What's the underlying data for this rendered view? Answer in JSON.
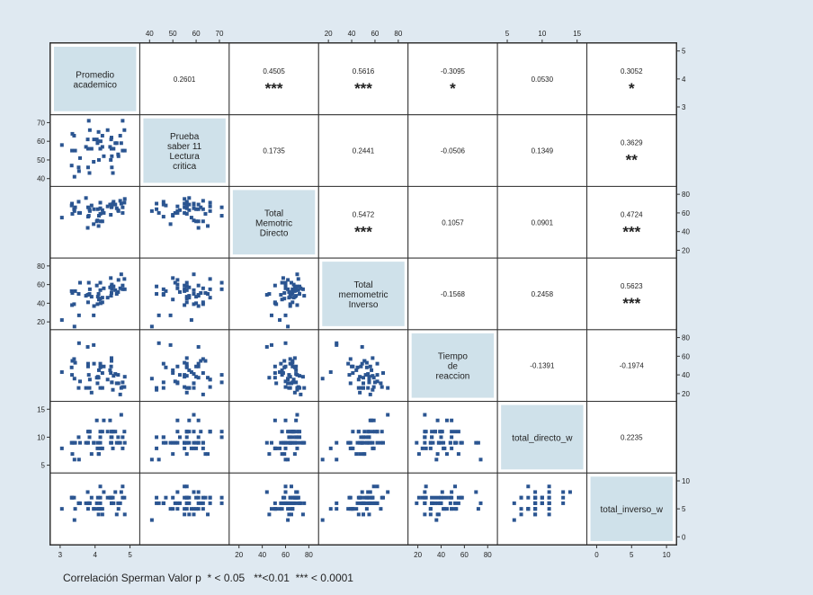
{
  "chart_data": {
    "type": "scatter-matrix",
    "variables": [
      "Promedio\nacademico",
      "Prueba\nsaber 11\nLectura\ncritica",
      "Total\nMemotric\nDirecto",
      "Total\nmemometric\nInverso",
      "Tiempo\nde\nreaccion",
      "total_directo_w",
      "total_inverso_w"
    ],
    "correlations": [
      {
        "row": 0,
        "col": 1,
        "value": "0.2601",
        "sig": ""
      },
      {
        "row": 0,
        "col": 2,
        "value": "0.4505",
        "sig": "***"
      },
      {
        "row": 0,
        "col": 3,
        "value": "0.5616",
        "sig": "***"
      },
      {
        "row": 0,
        "col": 4,
        "value": "-0.3095",
        "sig": "*"
      },
      {
        "row": 0,
        "col": 5,
        "value": "0.0530",
        "sig": ""
      },
      {
        "row": 0,
        "col": 6,
        "value": "0.3052",
        "sig": "*"
      },
      {
        "row": 1,
        "col": 2,
        "value": "0.1735",
        "sig": ""
      },
      {
        "row": 1,
        "col": 3,
        "value": "0.2441",
        "sig": ""
      },
      {
        "row": 1,
        "col": 4,
        "value": "-0.0506",
        "sig": ""
      },
      {
        "row": 1,
        "col": 5,
        "value": "0.1349",
        "sig": ""
      },
      {
        "row": 1,
        "col": 6,
        "value": "0.3629",
        "sig": "**"
      },
      {
        "row": 2,
        "col": 3,
        "value": "0.5472",
        "sig": "***"
      },
      {
        "row": 2,
        "col": 4,
        "value": "0.1057",
        "sig": ""
      },
      {
        "row": 2,
        "col": 5,
        "value": "0.0901",
        "sig": ""
      },
      {
        "row": 2,
        "col": 6,
        "value": "0.4724",
        "sig": "***"
      },
      {
        "row": 3,
        "col": 4,
        "value": "-0.1568",
        "sig": ""
      },
      {
        "row": 3,
        "col": 5,
        "value": "0.2458",
        "sig": ""
      },
      {
        "row": 3,
        "col": 6,
        "value": "0.5623",
        "sig": "***"
      },
      {
        "row": 4,
        "col": 5,
        "value": "-0.1391",
        "sig": ""
      },
      {
        "row": 4,
        "col": 6,
        "value": "-0.1974",
        "sig": ""
      },
      {
        "row": 5,
        "col": 6,
        "value": "0.2235",
        "sig": ""
      }
    ],
    "axis_ticks": {
      "top": [
        {
          "col": 1,
          "values": [
            "40",
            "50",
            "60",
            "70"
          ]
        },
        {
          "col": 3,
          "values": [
            "20",
            "40",
            "60",
            "80"
          ]
        },
        {
          "col": 5,
          "values": [
            "5",
            "10",
            "15"
          ]
        }
      ],
      "bottom": [
        {
          "col": 0,
          "values": [
            "3",
            "4",
            "5"
          ]
        },
        {
          "col": 2,
          "values": [
            "20",
            "40",
            "60",
            "80"
          ]
        },
        {
          "col": 4,
          "values": [
            "20",
            "40",
            "60",
            "80"
          ]
        },
        {
          "col": 6,
          "values": [
            "0",
            "5",
            "10"
          ]
        }
      ],
      "left": [
        {
          "row": 1,
          "values": [
            "40",
            "50",
            "60",
            "70"
          ]
        },
        {
          "row": 3,
          "values": [
            "20",
            "40",
            "60",
            "80"
          ]
        },
        {
          "row": 5,
          "values": [
            "5",
            "10",
            "15"
          ]
        }
      ],
      "right": [
        {
          "row": 0,
          "values": [
            "3",
            "4",
            "5"
          ]
        },
        {
          "row": 2,
          "values": [
            "20",
            "40",
            "60",
            "80"
          ]
        },
        {
          "row": 4,
          "values": [
            "20",
            "40",
            "60",
            "80"
          ]
        },
        {
          "row": 6,
          "values": [
            "0",
            "5",
            "10"
          ]
        }
      ]
    },
    "ranges": [
      [
        3,
        5
      ],
      [
        40,
        70
      ],
      [
        20,
        80
      ],
      [
        20,
        80
      ],
      [
        20,
        80
      ],
      [
        5,
        15
      ],
      [
        0,
        10
      ]
    ],
    "observations": [
      {
        "pa": 3.34,
        "lc": 55,
        "td": 70,
        "ti": 38,
        "tr": 40,
        "tdw": 9,
        "tiw": 7
      },
      {
        "pa": 3.4,
        "lc": 63,
        "td": 64,
        "ti": 39,
        "tr": 57,
        "tdw": 9,
        "tiw": 7
      },
      {
        "pa": 3.53,
        "lc": 46,
        "td": 72,
        "ti": 50,
        "tr": 26,
        "tdw": 10,
        "tiw": 6
      },
      {
        "pa": 3.54,
        "lc": 44,
        "td": 60,
        "ti": 27,
        "tr": 74,
        "tdw": 6,
        "tiw": 6
      },
      {
        "pa": 4.85,
        "lc": 55,
        "td": 75,
        "ti": 55,
        "tr": 38,
        "tdw": 9,
        "tiw": 4
      },
      {
        "pa": 4.48,
        "lc": 46,
        "td": 69,
        "ti": 55,
        "tr": 32,
        "tdw": 10,
        "tiw": 6
      },
      {
        "pa": 3.57,
        "lc": 51,
        "td": 60,
        "ti": 62,
        "tr": 33,
        "tdw": 9,
        "tiw": 6
      },
      {
        "pa": 4.45,
        "lc": 50,
        "td": 58,
        "ti": 67,
        "tr": 42,
        "tdw": 9,
        "tiw": 7
      },
      {
        "pa": 4.05,
        "lc": 61,
        "td": 51,
        "ti": 59,
        "tr": 37,
        "tdw": 13,
        "tiw": 6
      },
      {
        "pa": 4.15,
        "lc": 56,
        "td": 65,
        "ti": 62,
        "tr": 52,
        "tdw": 11,
        "tiw": 9
      },
      {
        "pa": 3.74,
        "lc": 57,
        "td": 76,
        "ti": 48,
        "tr": 26,
        "tdw": 9,
        "tiw": 6
      },
      {
        "pa": 3.79,
        "lc": 61,
        "td": 44,
        "ti": 49,
        "tr": 70,
        "tdw": 9,
        "tiw": 8
      },
      {
        "pa": 3.8,
        "lc": 56,
        "td": 66,
        "ti": 41,
        "tr": 49,
        "tdw": 11,
        "tiw": 5
      },
      {
        "pa": 4.79,
        "lc": 55,
        "td": 60,
        "ti": 59,
        "tr": 27,
        "tdw": 8,
        "tiw": 9
      },
      {
        "pa": 3.43,
        "lc": 55,
        "td": 66,
        "ti": 53,
        "tr": 53,
        "tdw": 9,
        "tiw": 5
      },
      {
        "pa": 4.51,
        "lc": 43,
        "td": 70,
        "ti": 58,
        "tr": 24,
        "tdw": 8,
        "tiw": 7
      },
      {
        "pa": 4.48,
        "lc": 52,
        "td": 67,
        "ti": 60,
        "tr": 32,
        "tdw": 11,
        "tiw": 6
      },
      {
        "pa": 4.84,
        "lc": 66,
        "td": 71,
        "ti": 66,
        "tr": 27,
        "tdw": 11,
        "tiw": 7
      },
      {
        "pa": 4.53,
        "lc": 56,
        "td": 72,
        "ti": 58,
        "tr": 39,
        "tdw": 11,
        "tiw": 6
      },
      {
        "pa": 4.67,
        "lc": 52,
        "td": 62,
        "ti": 65,
        "tr": 31,
        "tdw": 9,
        "tiw": 5
      },
      {
        "pa": 3.41,
        "lc": 41,
        "td": 62,
        "ti": 15,
        "tr": 36,
        "tdw": 6,
        "tiw": 3
      },
      {
        "pa": 4.75,
        "lc": 59,
        "td": 70,
        "ti": 71,
        "tr": 26,
        "tdw": 14,
        "tiw": 8
      },
      {
        "pa": 3.82,
        "lc": 71,
        "td": 57,
        "ti": 62,
        "tr": 40,
        "tdw": 11,
        "tiw": 6
      },
      {
        "pa": 4.47,
        "lc": 62,
        "td": 66,
        "ti": 51,
        "tr": 55,
        "tdw": 11,
        "tiw": 6
      },
      {
        "pa": 4.62,
        "lc": 59,
        "td": 65,
        "ti": 50,
        "tr": 31,
        "tdw": 9,
        "tiw": 4
      },
      {
        "pa": 3.33,
        "lc": 47,
        "td": 68,
        "ti": 53,
        "tr": 48,
        "tdw": 9,
        "tiw": 7
      },
      {
        "pa": 3.85,
        "lc": 66,
        "td": 62,
        "ti": 55,
        "tr": 35,
        "tdw": 11,
        "tiw": 6
      },
      {
        "pa": 4.15,
        "lc": 56,
        "td": 59,
        "ti": 45,
        "tr": 48,
        "tdw": 9,
        "tiw": 6
      },
      {
        "pa": 3.05,
        "lc": 58,
        "td": 55,
        "ti": 22,
        "tr": 43,
        "tdw": 8,
        "tiw": 5
      },
      {
        "pa": 3.8,
        "lc": 46,
        "td": 56,
        "ti": 49,
        "tr": 52,
        "tdw": 9,
        "tiw": 6
      },
      {
        "pa": 4.15,
        "lc": 56,
        "td": 71,
        "ti": 54,
        "tr": 26,
        "tdw": 10,
        "tiw": 7
      },
      {
        "pa": 4.46,
        "lc": 61,
        "td": 69,
        "ti": 48,
        "tr": 49,
        "tdw": 10,
        "tiw": 7
      },
      {
        "pa": 4.08,
        "lc": 60,
        "td": 64,
        "ti": 47,
        "tr": 38,
        "tdw": 9,
        "tiw": 7
      },
      {
        "pa": 4.11,
        "lc": 50,
        "td": 57,
        "ti": 44,
        "tr": 45,
        "tdw": 7,
        "tiw": 5
      },
      {
        "pa": 4.16,
        "lc": 60,
        "td": 51,
        "ti": 40,
        "tr": 49,
        "tdw": 8,
        "tiw": 5
      },
      {
        "pa": 4.21,
        "lc": 57,
        "td": 63,
        "ti": 46,
        "tr": 26,
        "tdw": 11,
        "tiw": 4
      },
      {
        "pa": 3.9,
        "lc": 56,
        "td": 68,
        "ti": 47,
        "tr": 21,
        "tdw": 7,
        "tiw": 7
      },
      {
        "pa": 4.47,
        "lc": 56,
        "td": 68,
        "ti": 58,
        "tr": 58,
        "tdw": 9,
        "tiw": 7
      },
      {
        "pa": 3.96,
        "lc": 49,
        "td": 48,
        "ti": 27,
        "tr": 72,
        "tdw": 9,
        "tiw": 5
      },
      {
        "pa": 4.72,
        "lc": 63,
        "td": 73,
        "ti": 56,
        "tr": 19,
        "tdw": 9,
        "tiw": 6
      },
      {
        "pa": 4.21,
        "lc": 63,
        "td": 51,
        "ti": 41,
        "tr": 42,
        "tdw": 8,
        "tiw": 5
      },
      {
        "pa": 4.58,
        "lc": 59,
        "td": 69,
        "ti": 54,
        "tr": 41,
        "tdw": 11,
        "tiw": 8
      },
      {
        "pa": 3.97,
        "lc": 61,
        "td": 64,
        "ti": 37,
        "tr": 52,
        "tdw": 9,
        "tiw": 5
      },
      {
        "pa": 4.36,
        "lc": 66,
        "td": 67,
        "ti": 46,
        "tr": 35,
        "tdw": 11,
        "tiw": 7
      },
      {
        "pa": 3.84,
        "lc": 43,
        "td": 64,
        "ti": 50,
        "tr": 26,
        "tdw": 10,
        "tiw": 6
      },
      {
        "pa": 4.43,
        "lc": 57,
        "td": 69,
        "ti": 57,
        "tr": 45,
        "tdw": 13,
        "tiw": 7
      },
      {
        "pa": 4.1,
        "lc": 65,
        "td": 46,
        "ti": 50,
        "tr": 37,
        "tdw": 7,
        "tiw": 4
      },
      {
        "pa": 4.07,
        "lc": 59,
        "td": 52,
        "ti": 39,
        "tr": 31,
        "tdw": 8,
        "tiw": 5
      },
      {
        "pa": 4.25,
        "lc": 52,
        "td": 60,
        "ti": 56,
        "tr": 49,
        "tdw": 13,
        "tiw": 8
      },
      {
        "pa": 4.66,
        "lc": 53,
        "td": 63,
        "ti": 52,
        "tr": 40,
        "tdw": 10,
        "tiw": 6
      },
      {
        "pa": 4.79,
        "lc": 71,
        "td": 66,
        "ti": 55,
        "tr": 32,
        "tdw": 10,
        "tiw": 7
      },
      {
        "pa": 3.35,
        "lc": 64,
        "td": 59,
        "ti": 51,
        "tr": 55,
        "tdw": 7,
        "tiw": 7
      }
    ]
  },
  "footnote": "Correlación Sperman Valor p  * < 0.05   **<0.01  *** < 0.0001",
  "colors": {
    "background": "#dfe9f1",
    "panel": "#ffffff",
    "diagonal": "#cfe1ea",
    "point": "#2b5591",
    "line": "#333333"
  }
}
